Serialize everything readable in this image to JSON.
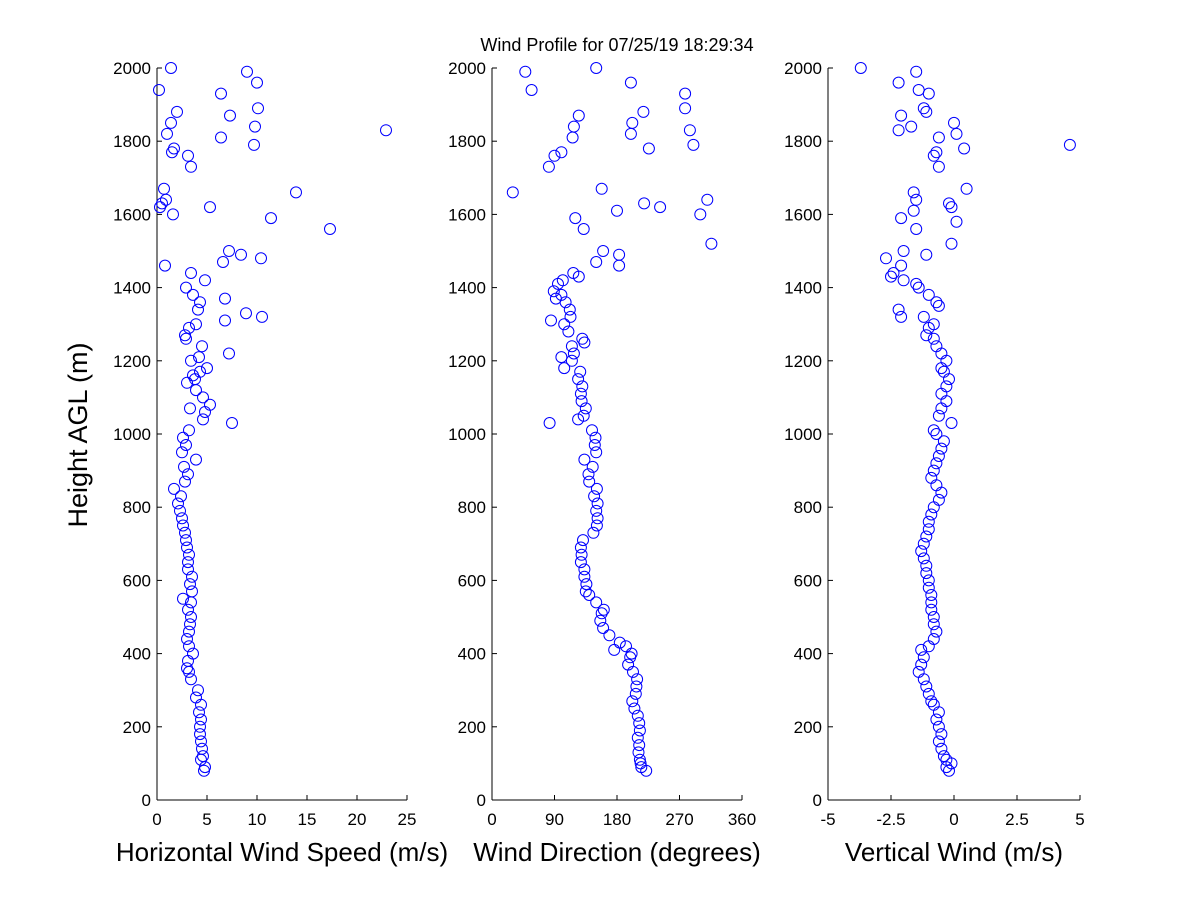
{
  "title": "Wind Profile for  07/25/19 18:29:34",
  "ylabel": "Height AGL (m)",
  "marker_color": "#0000ff",
  "chart_data": [
    {
      "type": "scatter",
      "xlabel": "Horizontal Wind Speed (m/s)",
      "ylabel": "Height AGL (m)",
      "xlim": [
        0,
        25
      ],
      "ylim": [
        0,
        2000
      ],
      "xticks": [
        "0",
        "5",
        "10",
        "15",
        "20",
        "25"
      ],
      "yticks": [
        "0",
        "200",
        "400",
        "600",
        "800",
        "1000",
        "1200",
        "1400",
        "1600",
        "1800",
        "2000"
      ],
      "grid": false,
      "points": [
        [
          4.7,
          80
        ],
        [
          4.8,
          90
        ],
        [
          4.4,
          110
        ],
        [
          4.6,
          120
        ],
        [
          4.5,
          140
        ],
        [
          4.4,
          160
        ],
        [
          4.3,
          180
        ],
        [
          4.3,
          200
        ],
        [
          4.4,
          220
        ],
        [
          4.2,
          240
        ],
        [
          4.4,
          260
        ],
        [
          3.9,
          280
        ],
        [
          4.1,
          300
        ],
        [
          3.4,
          330
        ],
        [
          3.2,
          350
        ],
        [
          3.0,
          360
        ],
        [
          3.1,
          380
        ],
        [
          3.6,
          400
        ],
        [
          3.2,
          420
        ],
        [
          3.0,
          440
        ],
        [
          3.2,
          460
        ],
        [
          3.3,
          480
        ],
        [
          3.4,
          500
        ],
        [
          3.1,
          520
        ],
        [
          3.4,
          540
        ],
        [
          2.6,
          550
        ],
        [
          3.5,
          570
        ],
        [
          3.3,
          590
        ],
        [
          3.5,
          610
        ],
        [
          3.1,
          630
        ],
        [
          3.1,
          650
        ],
        [
          3.2,
          670
        ],
        [
          3.0,
          690
        ],
        [
          2.9,
          710
        ],
        [
          2.8,
          730
        ],
        [
          2.6,
          750
        ],
        [
          2.5,
          770
        ],
        [
          2.3,
          790
        ],
        [
          2.1,
          810
        ],
        [
          2.4,
          830
        ],
        [
          1.7,
          850
        ],
        [
          2.8,
          870
        ],
        [
          3.1,
          890
        ],
        [
          2.7,
          910
        ],
        [
          3.9,
          930
        ],
        [
          2.5,
          950
        ],
        [
          2.9,
          970
        ],
        [
          2.6,
          990
        ],
        [
          3.2,
          1010
        ],
        [
          7.5,
          1030
        ],
        [
          4.6,
          1040
        ],
        [
          4.8,
          1060
        ],
        [
          3.3,
          1070
        ],
        [
          5.3,
          1080
        ],
        [
          4.6,
          1100
        ],
        [
          3.9,
          1120
        ],
        [
          3.0,
          1140
        ],
        [
          3.8,
          1150
        ],
        [
          3.6,
          1160
        ],
        [
          4.3,
          1170
        ],
        [
          5.0,
          1180
        ],
        [
          3.4,
          1200
        ],
        [
          4.2,
          1210
        ],
        [
          7.2,
          1220
        ],
        [
          4.5,
          1240
        ],
        [
          2.9,
          1260
        ],
        [
          2.8,
          1270
        ],
        [
          3.2,
          1290
        ],
        [
          3.9,
          1300
        ],
        [
          6.8,
          1310
        ],
        [
          10.5,
          1320
        ],
        [
          8.9,
          1330
        ],
        [
          4.1,
          1340
        ],
        [
          4.3,
          1360
        ],
        [
          6.8,
          1370
        ],
        [
          3.6,
          1380
        ],
        [
          2.9,
          1400
        ],
        [
          4.8,
          1420
        ],
        [
          3.4,
          1440
        ],
        [
          0.8,
          1460
        ],
        [
          6.6,
          1470
        ],
        [
          10.4,
          1480
        ],
        [
          8.4,
          1490
        ],
        [
          7.2,
          1500
        ],
        [
          17.3,
          1560
        ],
        [
          11.4,
          1590
        ],
        [
          1.6,
          1600
        ],
        [
          0.3,
          1620
        ],
        [
          5.3,
          1620
        ],
        [
          0.5,
          1630
        ],
        [
          0.9,
          1640
        ],
        [
          13.9,
          1660
        ],
        [
          0.7,
          1670
        ],
        [
          3.4,
          1730
        ],
        [
          3.1,
          1760
        ],
        [
          1.5,
          1770
        ],
        [
          1.7,
          1780
        ],
        [
          9.7,
          1790
        ],
        [
          6.4,
          1810
        ],
        [
          1.0,
          1820
        ],
        [
          22.9,
          1830
        ],
        [
          9.8,
          1840
        ],
        [
          1.4,
          1850
        ],
        [
          7.3,
          1870
        ],
        [
          2.0,
          1880
        ],
        [
          10.1,
          1890
        ],
        [
          6.4,
          1930
        ],
        [
          0.2,
          1940
        ],
        [
          10.0,
          1960
        ],
        [
          9.0,
          1990
        ],
        [
          1.4,
          2000
        ]
      ]
    },
    {
      "type": "scatter",
      "xlabel": "Wind Direction (degrees)",
      "xlim": [
        0,
        360
      ],
      "ylim": [
        0,
        2000
      ],
      "xticks": [
        "0",
        "90",
        "180",
        "270",
        "360"
      ],
      "yticks": [
        "0",
        "200",
        "400",
        "600",
        "800",
        "1000",
        "1200",
        "1400",
        "1600",
        "1800",
        "2000"
      ],
      "grid": false,
      "points": [
        [
          222,
          80
        ],
        [
          215,
          90
        ],
        [
          214,
          100
        ],
        [
          213,
          110
        ],
        [
          211,
          130
        ],
        [
          212,
          150
        ],
        [
          210,
          170
        ],
        [
          213,
          190
        ],
        [
          212,
          210
        ],
        [
          210,
          230
        ],
        [
          205,
          250
        ],
        [
          202,
          270
        ],
        [
          207,
          290
        ],
        [
          208,
          310
        ],
        [
          209,
          330
        ],
        [
          203,
          350
        ],
        [
          196,
          370
        ],
        [
          199,
          390
        ],
        [
          201,
          400
        ],
        [
          193,
          420
        ],
        [
          184,
          430
        ],
        [
          176,
          410
        ],
        [
          169,
          450
        ],
        [
          160,
          470
        ],
        [
          156,
          490
        ],
        [
          158,
          510
        ],
        [
          161,
          520
        ],
        [
          150,
          540
        ],
        [
          140,
          560
        ],
        [
          135,
          570
        ],
        [
          136,
          590
        ],
        [
          133,
          610
        ],
        [
          133,
          630
        ],
        [
          128,
          650
        ],
        [
          129,
          670
        ],
        [
          128,
          690
        ],
        [
          131,
          710
        ],
        [
          146,
          730
        ],
        [
          151,
          750
        ],
        [
          152,
          770
        ],
        [
          150,
          790
        ],
        [
          152,
          810
        ],
        [
          147,
          830
        ],
        [
          151,
          850
        ],
        [
          140,
          870
        ],
        [
          139,
          890
        ],
        [
          145,
          910
        ],
        [
          133,
          930
        ],
        [
          150,
          950
        ],
        [
          148,
          970
        ],
        [
          149,
          990
        ],
        [
          144,
          1010
        ],
        [
          83,
          1030
        ],
        [
          124,
          1040
        ],
        [
          132,
          1050
        ],
        [
          135,
          1070
        ],
        [
          129,
          1090
        ],
        [
          128,
          1110
        ],
        [
          130,
          1130
        ],
        [
          124,
          1150
        ],
        [
          127,
          1170
        ],
        [
          104,
          1180
        ],
        [
          115,
          1200
        ],
        [
          100,
          1210
        ],
        [
          118,
          1220
        ],
        [
          115,
          1240
        ],
        [
          133,
          1250
        ],
        [
          130,
          1260
        ],
        [
          110,
          1280
        ],
        [
          104,
          1300
        ],
        [
          85,
          1310
        ],
        [
          113,
          1320
        ],
        [
          112,
          1340
        ],
        [
          106,
          1360
        ],
        [
          92,
          1370
        ],
        [
          100,
          1380
        ],
        [
          89,
          1390
        ],
        [
          95,
          1410
        ],
        [
          102,
          1420
        ],
        [
          125,
          1430
        ],
        [
          117,
          1440
        ],
        [
          183,
          1460
        ],
        [
          150,
          1470
        ],
        [
          183,
          1490
        ],
        [
          160,
          1500
        ],
        [
          316,
          1520
        ],
        [
          132,
          1560
        ],
        [
          120,
          1590
        ],
        [
          300,
          1600
        ],
        [
          180,
          1610
        ],
        [
          242,
          1620
        ],
        [
          219,
          1630
        ],
        [
          310,
          1640
        ],
        [
          30,
          1660
        ],
        [
          158,
          1670
        ],
        [
          82,
          1730
        ],
        [
          90,
          1760
        ],
        [
          100,
          1770
        ],
        [
          226,
          1780
        ],
        [
          290,
          1790
        ],
        [
          116,
          1810
        ],
        [
          200,
          1820
        ],
        [
          285,
          1830
        ],
        [
          118,
          1840
        ],
        [
          202,
          1850
        ],
        [
          125,
          1870
        ],
        [
          218,
          1880
        ],
        [
          278,
          1890
        ],
        [
          278,
          1930
        ],
        [
          57,
          1940
        ],
        [
          200,
          1960
        ],
        [
          48,
          1990
        ],
        [
          150,
          2000
        ]
      ]
    },
    {
      "type": "scatter",
      "xlabel": "Vertical Wind (m/s)",
      "xlim": [
        -5,
        5
      ],
      "ylim": [
        0,
        2000
      ],
      "xticks": [
        "-5",
        "-2.5",
        "0",
        "2.5",
        "5"
      ],
      "yticks": [
        "0",
        "200",
        "400",
        "600",
        "800",
        "1000",
        "1200",
        "1400",
        "1600",
        "1800",
        "2000"
      ],
      "grid": false,
      "points": [
        [
          -0.2,
          80
        ],
        [
          -0.3,
          90
        ],
        [
          -0.1,
          100
        ],
        [
          -0.3,
          110
        ],
        [
          -0.4,
          120
        ],
        [
          -0.5,
          140
        ],
        [
          -0.6,
          160
        ],
        [
          -0.5,
          180
        ],
        [
          -0.6,
          200
        ],
        [
          -0.7,
          220
        ],
        [
          -0.6,
          240
        ],
        [
          -0.8,
          260
        ],
        [
          -0.9,
          270
        ],
        [
          -1.0,
          290
        ],
        [
          -1.1,
          310
        ],
        [
          -1.2,
          330
        ],
        [
          -1.4,
          350
        ],
        [
          -1.3,
          370
        ],
        [
          -1.2,
          390
        ],
        [
          -1.3,
          410
        ],
        [
          -1.0,
          420
        ],
        [
          -0.8,
          440
        ],
        [
          -0.7,
          460
        ],
        [
          -0.8,
          480
        ],
        [
          -0.8,
          500
        ],
        [
          -0.9,
          520
        ],
        [
          -0.9,
          540
        ],
        [
          -0.9,
          560
        ],
        [
          -1.0,
          580
        ],
        [
          -1.0,
          600
        ],
        [
          -1.1,
          620
        ],
        [
          -1.1,
          640
        ],
        [
          -1.2,
          660
        ],
        [
          -1.3,
          680
        ],
        [
          -1.2,
          700
        ],
        [
          -1.1,
          720
        ],
        [
          -1.0,
          740
        ],
        [
          -1.0,
          760
        ],
        [
          -0.9,
          780
        ],
        [
          -0.8,
          800
        ],
        [
          -0.6,
          820
        ],
        [
          -0.5,
          840
        ],
        [
          -0.7,
          860
        ],
        [
          -0.9,
          880
        ],
        [
          -0.8,
          900
        ],
        [
          -0.7,
          920
        ],
        [
          -0.6,
          940
        ],
        [
          -0.5,
          960
        ],
        [
          -0.4,
          980
        ],
        [
          -0.7,
          1000
        ],
        [
          -0.8,
          1010
        ],
        [
          -0.1,
          1030
        ],
        [
          -0.6,
          1050
        ],
        [
          -0.5,
          1070
        ],
        [
          -0.3,
          1090
        ],
        [
          -0.5,
          1110
        ],
        [
          -0.3,
          1130
        ],
        [
          -0.2,
          1150
        ],
        [
          -0.4,
          1170
        ],
        [
          -0.5,
          1180
        ],
        [
          -0.3,
          1200
        ],
        [
          -0.5,
          1220
        ],
        [
          -0.7,
          1240
        ],
        [
          -0.8,
          1260
        ],
        [
          -1.1,
          1270
        ],
        [
          -1.0,
          1290
        ],
        [
          -0.8,
          1300
        ],
        [
          -1.2,
          1320
        ],
        [
          -2.1,
          1320
        ],
        [
          -2.2,
          1340
        ],
        [
          -0.6,
          1350
        ],
        [
          -0.7,
          1360
        ],
        [
          -1.0,
          1380
        ],
        [
          -1.4,
          1400
        ],
        [
          -1.5,
          1410
        ],
        [
          -2.0,
          1420
        ],
        [
          -2.5,
          1430
        ],
        [
          -2.4,
          1440
        ],
        [
          -2.1,
          1460
        ],
        [
          -2.7,
          1480
        ],
        [
          -1.1,
          1490
        ],
        [
          -2.0,
          1500
        ],
        [
          -0.1,
          1520
        ],
        [
          -1.5,
          1560
        ],
        [
          -2.1,
          1590
        ],
        [
          -0.1,
          1620
        ],
        [
          0.1,
          1580
        ],
        [
          -1.6,
          1610
        ],
        [
          -0.2,
          1630
        ],
        [
          -1.5,
          1640
        ],
        [
          -1.6,
          1660
        ],
        [
          0.5,
          1670
        ],
        [
          -0.6,
          1730
        ],
        [
          -0.8,
          1760
        ],
        [
          -0.7,
          1770
        ],
        [
          0.4,
          1780
        ],
        [
          4.6,
          1790
        ],
        [
          -0.6,
          1810
        ],
        [
          0.1,
          1820
        ],
        [
          -2.2,
          1830
        ],
        [
          -1.7,
          1840
        ],
        [
          0.0,
          1850
        ],
        [
          -2.1,
          1870
        ],
        [
          -1.1,
          1880
        ],
        [
          -1.2,
          1890
        ],
        [
          -1.0,
          1930
        ],
        [
          -1.4,
          1940
        ],
        [
          -2.2,
          1960
        ],
        [
          -1.5,
          1990
        ],
        [
          -3.7,
          2000
        ]
      ]
    }
  ]
}
